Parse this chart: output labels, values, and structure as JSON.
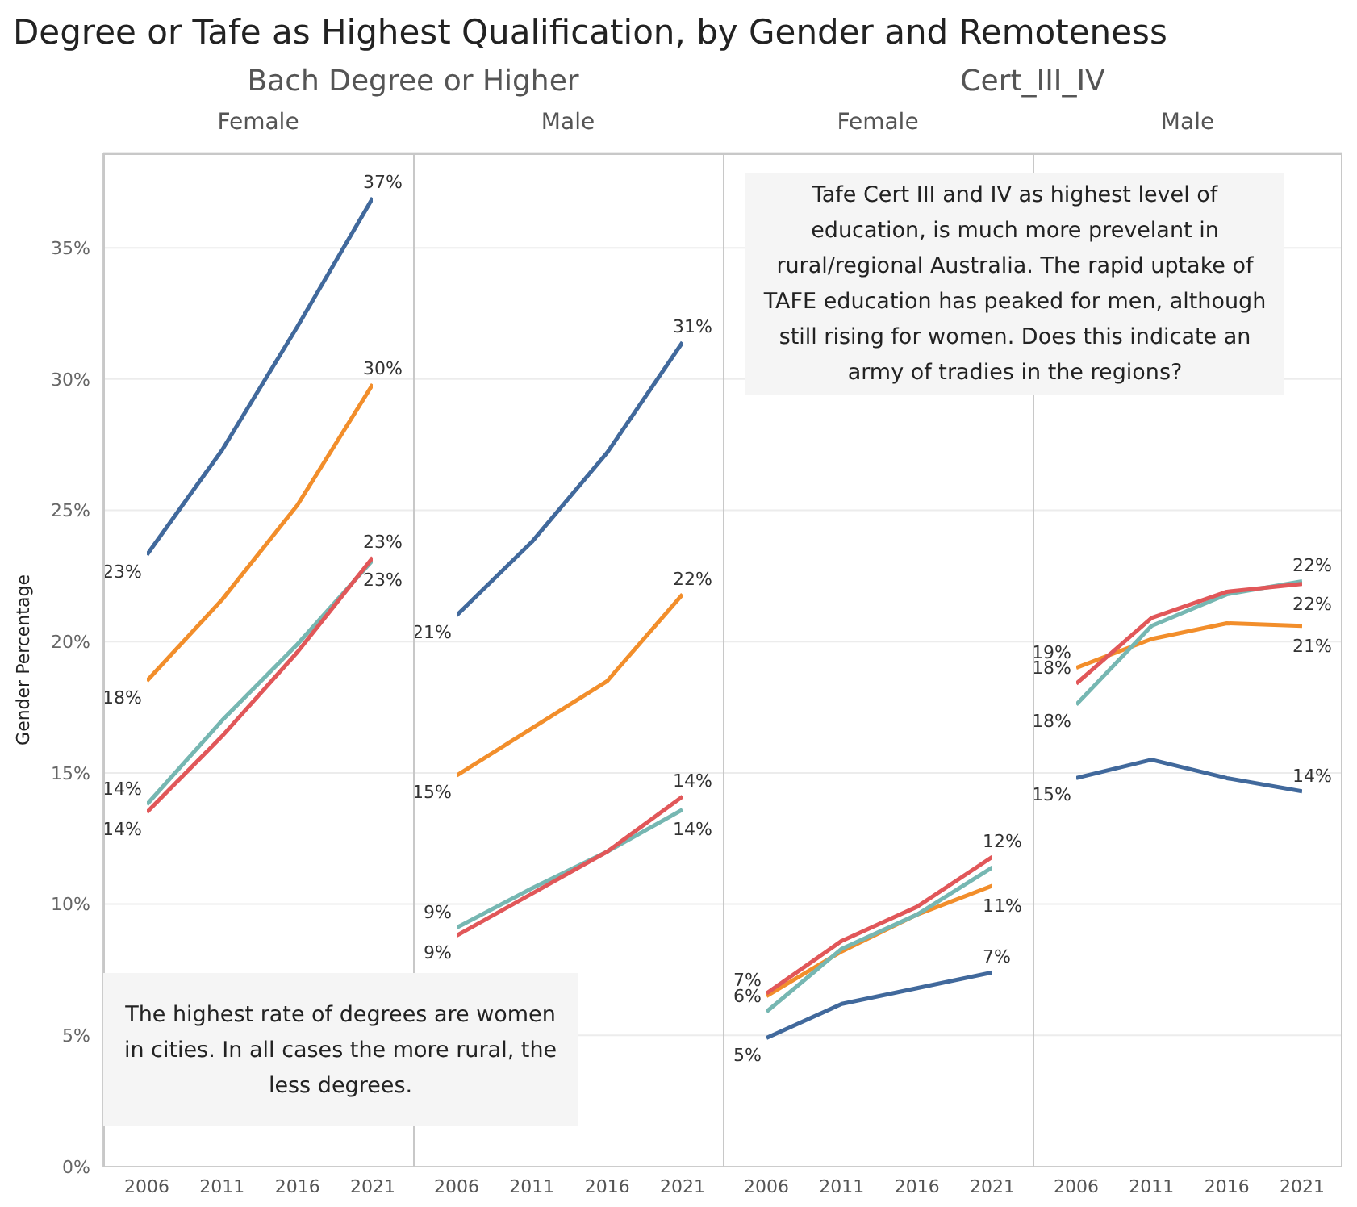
{
  "chart_data": [
    {
      "type": "line",
      "subtitle": "Bach Degree or Higher",
      "title": "Female",
      "ylabel": "Gender Percentage",
      "categories": [
        "2006",
        "2011",
        "2016",
        "2021"
      ],
      "ylim": [
        0,
        38.6
      ],
      "yticks": [
        {
          "value": 0,
          "label": "0%"
        },
        {
          "value": 5,
          "label": "5%"
        },
        {
          "value": 10,
          "label": "10%"
        },
        {
          "value": 15,
          "label": "15%"
        },
        {
          "value": 20,
          "label": "20%"
        },
        {
          "value": 25,
          "label": "25%"
        },
        {
          "value": 30,
          "label": "30%"
        },
        {
          "value": 35,
          "label": "35%"
        }
      ],
      "grid": "y",
      "marker": "none",
      "legend": false,
      "annotations": [
        "Degree or Tafe as Highest Qualification, by Gender and Remoteness",
        "The highest rate of degrees are women in cities. In all cases the more rural, the less degrees."
      ],
      "series": [
        {
          "color": "#41699c",
          "values": [
            23.3,
            27.3,
            32.0,
            36.9
          ],
          "value_labels": [
            "23%",
            null,
            null,
            "37%"
          ]
        },
        {
          "color": "#f28e2b",
          "values": [
            18.5,
            21.6,
            25.2,
            29.8
          ],
          "value_labels": [
            "18%",
            null,
            null,
            "30%"
          ]
        },
        {
          "color": "#76b7b2",
          "values": [
            13.8,
            17.0,
            19.9,
            23.1
          ],
          "value_labels": [
            "14%",
            null,
            null,
            "23%"
          ]
        },
        {
          "color": "#e15759",
          "values": [
            13.5,
            16.4,
            19.6,
            23.2
          ],
          "value_labels": [
            "14%",
            null,
            null,
            "23%"
          ]
        }
      ]
    },
    {
      "type": "line",
      "title": "Male",
      "categories": [
        "2006",
        "2011",
        "2016",
        "2021"
      ],
      "ylim": [
        0,
        38.6
      ],
      "yticks": [
        {
          "value": 0,
          "label": null
        },
        {
          "value": 5,
          "label": null
        },
        {
          "value": 10,
          "label": null
        },
        {
          "value": 15,
          "label": null
        },
        {
          "value": 20,
          "label": null
        },
        {
          "value": 25,
          "label": null
        },
        {
          "value": 30,
          "label": null
        },
        {
          "value": 35,
          "label": null
        }
      ],
      "tick_labels": "x",
      "grid": "y",
      "marker": "none",
      "legend": false,
      "series": [
        {
          "color": "#41699c",
          "values": [
            21.0,
            23.8,
            27.2,
            31.4
          ],
          "value_labels": [
            "21%",
            null,
            null,
            "31%"
          ]
        },
        {
          "color": "#f28e2b",
          "values": [
            14.9,
            16.7,
            18.5,
            21.8
          ],
          "value_labels": [
            "15%",
            null,
            null,
            "22%"
          ]
        },
        {
          "color": "#76b7b2",
          "values": [
            9.1,
            10.6,
            12.0,
            13.6
          ],
          "value_labels": [
            "9%",
            null,
            null,
            "14%"
          ]
        },
        {
          "color": "#e15759",
          "values": [
            8.8,
            10.4,
            12.0,
            14.1
          ],
          "value_labels": [
            "9%",
            null,
            null,
            "14%"
          ]
        }
      ]
    },
    {
      "type": "line",
      "subtitle": "Cert_III_IV",
      "title": "Female",
      "categories": [
        "2006",
        "2011",
        "2016",
        "2021"
      ],
      "ylim": [
        0,
        38.6
      ],
      "yticks": [
        {
          "value": 0,
          "label": null
        },
        {
          "value": 5,
          "label": null
        },
        {
          "value": 10,
          "label": null
        },
        {
          "value": 15,
          "label": null
        },
        {
          "value": 20,
          "label": null
        },
        {
          "value": 25,
          "label": null
        },
        {
          "value": 30,
          "label": null
        },
        {
          "value": 35,
          "label": null
        }
      ],
      "tick_labels": "x",
      "grid": "y",
      "marker": "none",
      "legend": false,
      "annotations": [
        "Tafe Cert III and IV as highest level of education, is much more prevelant in rural/regional Australia. The rapid uptake of TAFE education has peaked for men, although still rising for women. Does this indicate an army of tradies in the regions?"
      ],
      "series": [
        {
          "color": "#41699c",
          "values": [
            4.9,
            6.2,
            6.8,
            7.4
          ],
          "value_labels": [
            "5%",
            null,
            null,
            "7%"
          ]
        },
        {
          "color": "#f28e2b",
          "values": [
            6.5,
            8.2,
            9.6,
            10.7
          ],
          "value_labels": [
            "7%",
            null,
            null,
            "11%"
          ]
        },
        {
          "color": "#76b7b2",
          "values": [
            5.9,
            8.3,
            9.6,
            11.4
          ],
          "value_labels": [
            "6%",
            null,
            null,
            null
          ]
        },
        {
          "color": "#e15759",
          "values": [
            6.6,
            8.6,
            9.9,
            11.8
          ],
          "value_labels": [
            null,
            null,
            null,
            "12%"
          ]
        }
      ]
    },
    {
      "type": "line",
      "title": "Male",
      "categories": [
        "2006",
        "2011",
        "2016",
        "2021"
      ],
      "ylim": [
        0,
        38.6
      ],
      "yticks": [
        {
          "value": 0,
          "label": null
        },
        {
          "value": 5,
          "label": null
        },
        {
          "value": 10,
          "label": null
        },
        {
          "value": 15,
          "label": null
        },
        {
          "value": 20,
          "label": null
        },
        {
          "value": 25,
          "label": null
        },
        {
          "value": 30,
          "label": null
        },
        {
          "value": 35,
          "label": null
        }
      ],
      "tick_labels": "x",
      "grid": "y",
      "marker": "none",
      "legend": false,
      "series": [
        {
          "color": "#41699c",
          "values": [
            14.8,
            15.5,
            14.8,
            14.3
          ],
          "value_labels": [
            "15%",
            null,
            null,
            "14%"
          ]
        },
        {
          "color": "#f28e2b",
          "values": [
            19.0,
            20.1,
            20.7,
            20.6
          ],
          "value_labels": [
            "19%",
            null,
            null,
            "21%"
          ]
        },
        {
          "color": "#76b7b2",
          "values": [
            17.6,
            20.6,
            21.8,
            22.3
          ],
          "value_labels": [
            "18%",
            null,
            null,
            "22%"
          ]
        },
        {
          "color": "#e15759",
          "values": [
            18.4,
            20.9,
            21.9,
            22.2
          ],
          "value_labels": [
            "18%",
            null,
            null,
            "22%"
          ]
        }
      ]
    }
  ]
}
